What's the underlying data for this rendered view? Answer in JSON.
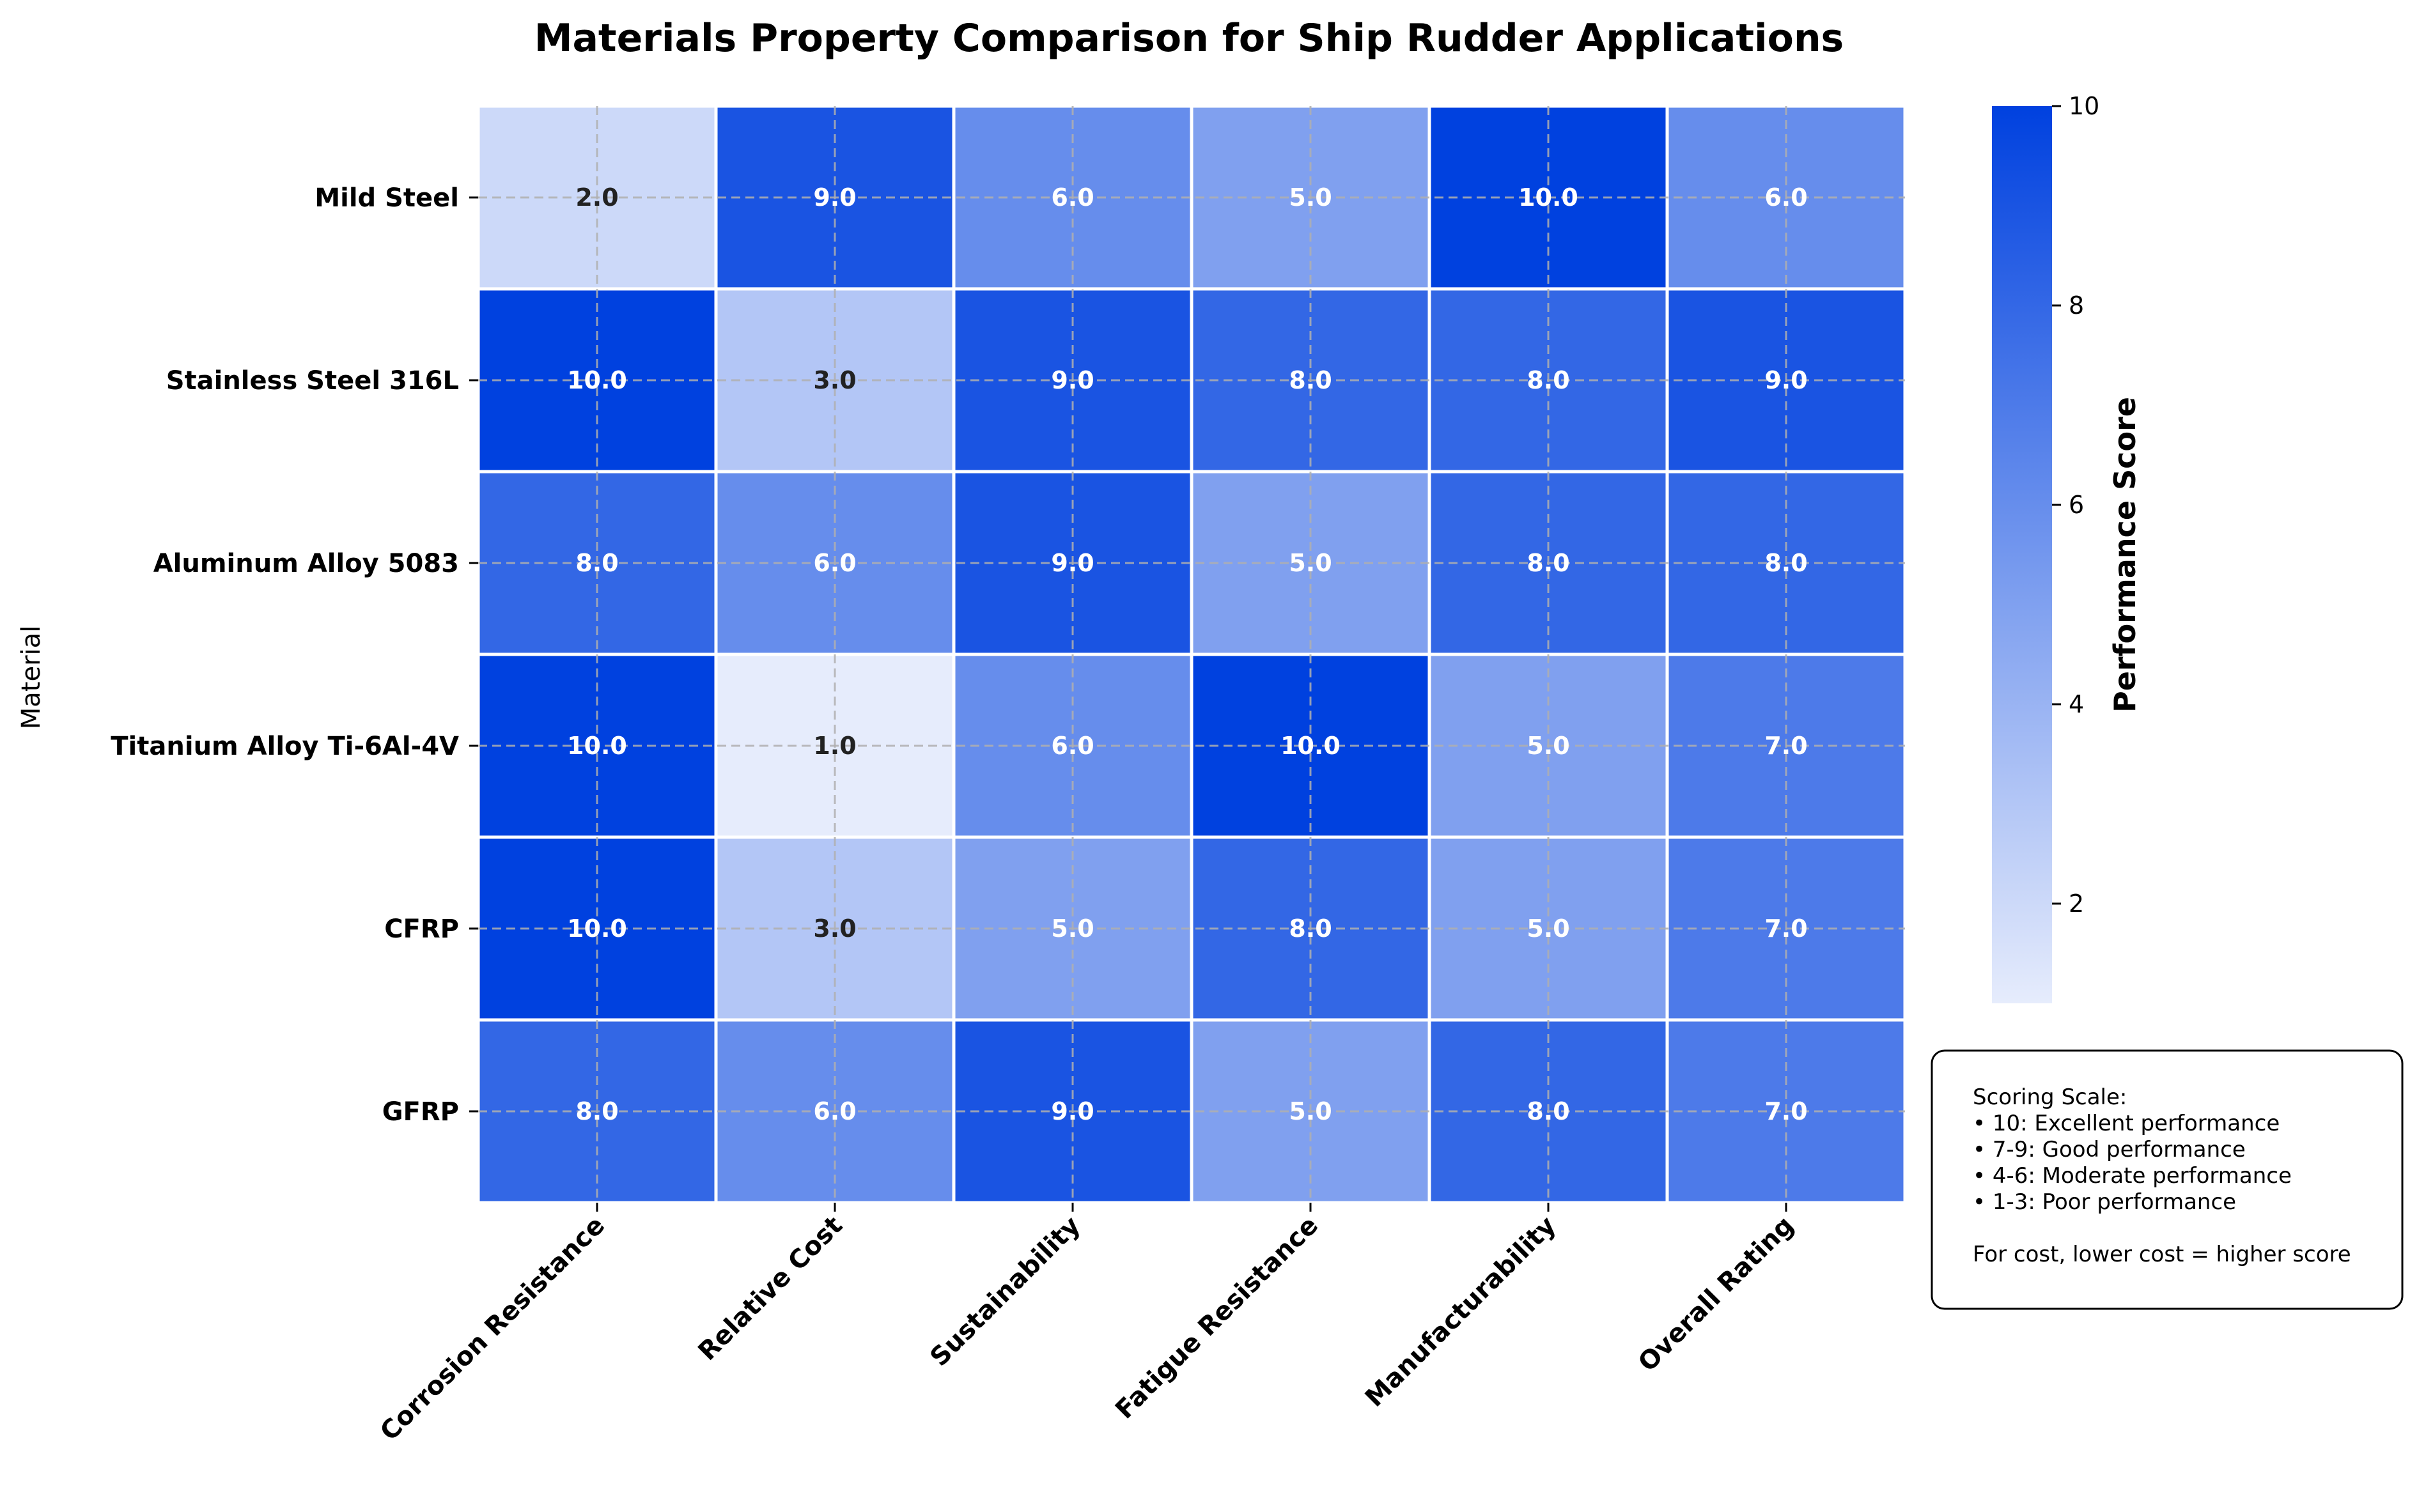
{
  "chart_data": {
    "type": "heatmap",
    "title": "Materials Property Comparison for Ship Rudder Applications",
    "ylabel": "Material",
    "xlabel": "",
    "rows": [
      "Mild Steel",
      "Stainless Steel 316L",
      "Aluminum Alloy 5083",
      "Titanium Alloy Ti-6Al-4V",
      "CFRP",
      "GFRP"
    ],
    "columns": [
      "Corrosion Resistance",
      "Relative Cost",
      "Sustainability",
      "Fatigue Resistance",
      "Manufacturability",
      "Overall Rating"
    ],
    "values": [
      [
        2,
        9,
        6,
        5,
        10,
        6
      ],
      [
        10,
        3,
        9,
        8,
        8,
        9
      ],
      [
        8,
        6,
        9,
        5,
        8,
        8
      ],
      [
        10,
        1,
        6,
        10,
        5,
        7
      ],
      [
        10,
        3,
        5,
        8,
        5,
        7
      ],
      [
        8,
        6,
        9,
        5,
        8,
        7
      ]
    ],
    "value_format": "0.0",
    "colorbar": {
      "label": "Performance Score",
      "range": [
        1,
        10
      ],
      "ticks": [
        2,
        4,
        6,
        8,
        10
      ],
      "color_low": "#e6ecfc",
      "color_high": "#0041df"
    },
    "grid": true,
    "note": {
      "lines": [
        "Scoring Scale:",
        "• 10: Excellent performance",
        "• 7-9: Good performance",
        "• 4-6: Moderate performance",
        "• 1-3: Poor performance",
        "",
        "For cost, lower cost = higher score"
      ]
    }
  }
}
